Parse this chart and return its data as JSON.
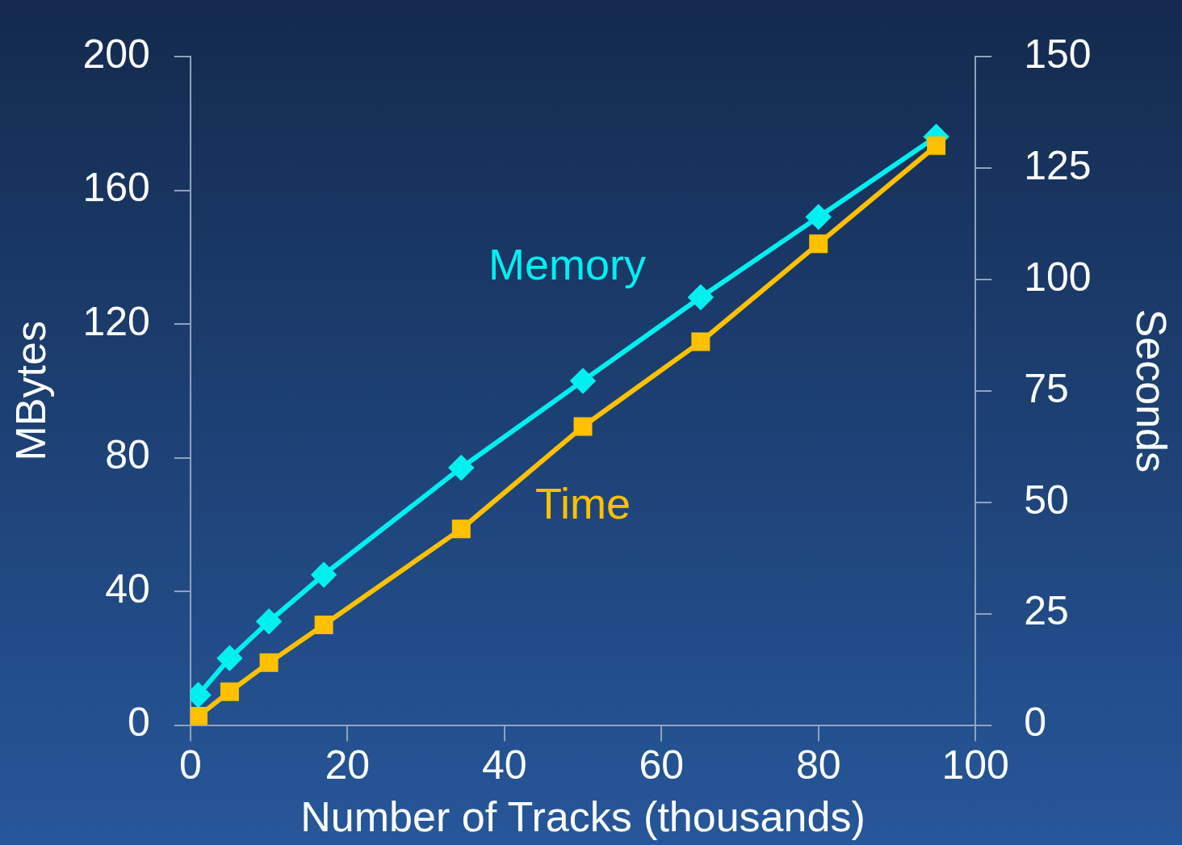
{
  "chart_data": {
    "type": "line",
    "xlabel": "Number of Tracks (thousands)",
    "ylabel": "MBytes",
    "y2label": "Seconds",
    "xlim": [
      0,
      100
    ],
    "xticks": [
      0,
      20,
      40,
      60,
      80,
      100
    ],
    "ylim": [
      0,
      200
    ],
    "yticks": [
      0,
      40,
      80,
      120,
      160,
      200
    ],
    "y2lim": [
      0,
      150
    ],
    "y2ticks": [
      0,
      25,
      50,
      75,
      100,
      125,
      150
    ],
    "grid": false,
    "legend": false,
    "line_style": "solid",
    "series": [
      {
        "name": "Memory",
        "color": "#00f0f0",
        "marker": "diamond",
        "x": [
          1,
          5,
          10,
          17,
          34.5,
          50,
          65,
          80,
          95
        ],
        "values": [
          9,
          20,
          31,
          45,
          77,
          103,
          128,
          152,
          176
        ]
      },
      {
        "name": "Time",
        "color": "#ffc000",
        "marker": "square",
        "axis": "y2",
        "x": [
          1,
          5,
          10,
          17,
          34.5,
          50,
          65,
          80,
          95
        ],
        "values": [
          2,
          7.5,
          14,
          22.5,
          44,
          67,
          86,
          108,
          130
        ]
      }
    ]
  }
}
